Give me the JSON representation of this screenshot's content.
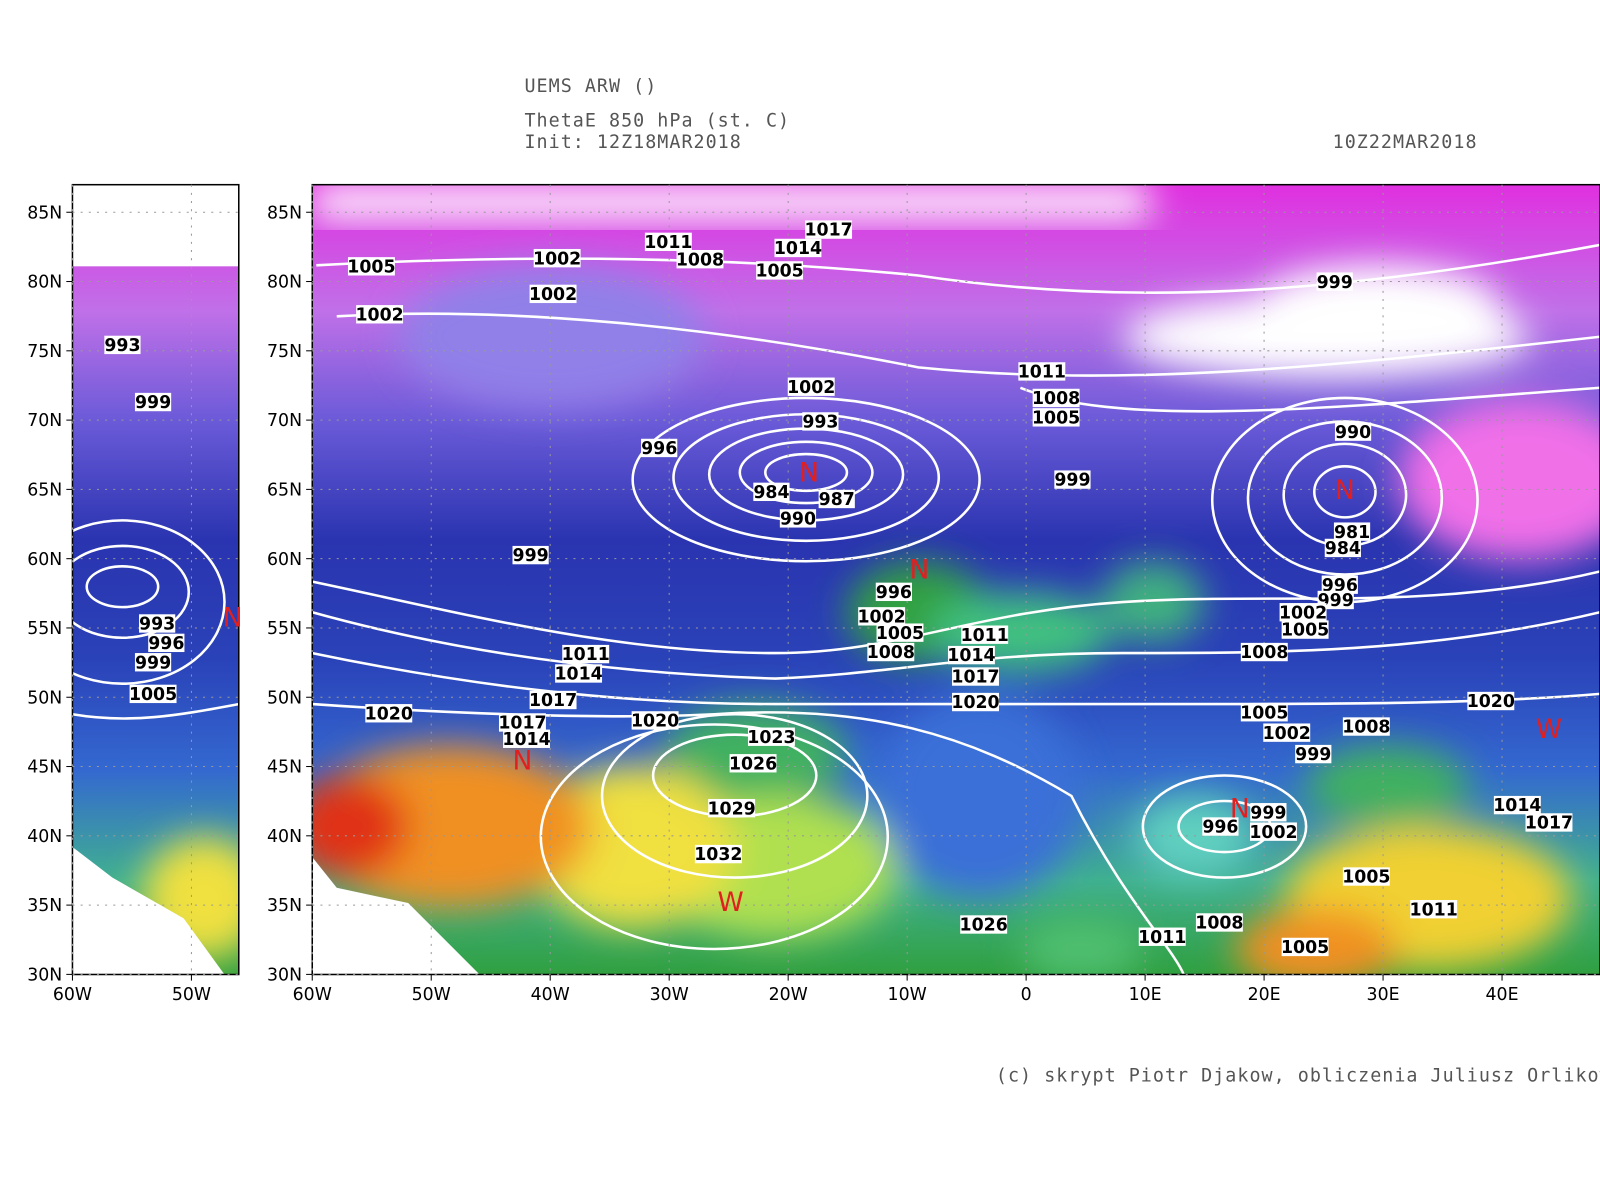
{
  "header": {
    "model": "UEMS ARW ()",
    "field": "ThetaE 850 hPa (st. C)",
    "init": "Init: 12Z18MAR2018",
    "valid": "10Z22MAR2018"
  },
  "footer": {
    "credit": "(c) skrypt Piotr Djakow, obliczenia Juliusz Orlikowsk"
  },
  "main_map": {
    "lat_labels": [
      "85N",
      "80N",
      "75N",
      "70N",
      "65N",
      "60N",
      "55N",
      "50N",
      "45N",
      "40N",
      "35N",
      "30N"
    ],
    "lon_labels": [
      "60W",
      "50W",
      "40W",
      "30W",
      "20W",
      "10W",
      "0",
      "10E",
      "20E",
      "30E",
      "40E"
    ],
    "isobar_labels": [
      1017,
      1011,
      1014,
      1008,
      1005,
      1002,
      1005,
      1002,
      1002,
      999,
      1011,
      1008,
      1005,
      1002,
      993,
      996,
      984,
      987,
      990,
      999,
      990,
      981,
      984,
      996,
      999,
      999,
      1002,
      1005,
      1008,
      996,
      1002,
      1005,
      1008,
      1011,
      1014,
      1017,
      1020,
      1011,
      1014,
      1017,
      1020,
      1017,
      1014,
      1020,
      1023,
      1026,
      1029,
      1032,
      1005,
      1002,
      999,
      1008,
      1020,
      996,
      999,
      1002,
      1014,
      1017,
      1005,
      1011,
      1026,
      1011,
      1008,
      1005
    ],
    "centers": [
      "N",
      "N",
      "N",
      "N",
      "N",
      "W",
      "W"
    ]
  },
  "inset_map": {
    "lat_labels": [
      "85N",
      "80N",
      "75N",
      "70N",
      "65N",
      "60N",
      "55N",
      "50N",
      "45N",
      "40N",
      "35N",
      "30N"
    ],
    "lon_labels": [
      "60W",
      "50W"
    ],
    "isobar_labels": [
      993,
      999,
      993,
      996,
      999,
      1005
    ],
    "centers": [
      "N"
    ]
  }
}
